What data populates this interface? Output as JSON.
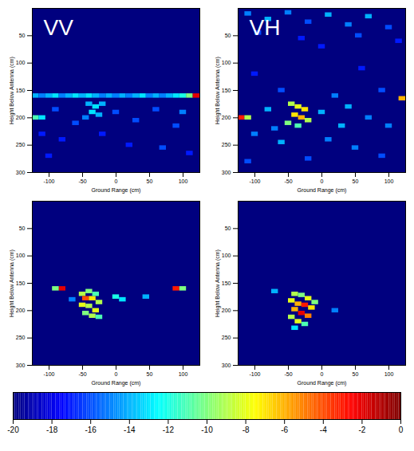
{
  "chart_data": [
    {
      "type": "heatmap",
      "title": "VV",
      "x_label": "Ground Range (cm)",
      "y_label": "Height Below Antenna (cm)",
      "xlim": [
        -125,
        125
      ],
      "ylim": [
        0,
        300
      ],
      "xticks": [
        -100,
        -50,
        0,
        50,
        100
      ],
      "yticks": [
        50,
        100,
        150,
        200,
        250,
        300
      ],
      "cell_size": [
        10,
        8
      ],
      "cells": [
        [
          -120,
          160,
          -14
        ],
        [
          -110,
          160,
          -15
        ],
        [
          -100,
          160,
          -14
        ],
        [
          -90,
          160,
          -13
        ],
        [
          -80,
          160,
          -15
        ],
        [
          -70,
          160,
          -14
        ],
        [
          -60,
          160,
          -13
        ],
        [
          -50,
          160,
          -14
        ],
        [
          -40,
          160,
          -13
        ],
        [
          -30,
          160,
          -14
        ],
        [
          -20,
          160,
          -15
        ],
        [
          -10,
          160,
          -14
        ],
        [
          0,
          160,
          -15
        ],
        [
          10,
          160,
          -14
        ],
        [
          20,
          160,
          -15
        ],
        [
          30,
          160,
          -14
        ],
        [
          40,
          160,
          -13
        ],
        [
          50,
          160,
          -15
        ],
        [
          60,
          160,
          -14
        ],
        [
          70,
          160,
          -15
        ],
        [
          80,
          160,
          -14
        ],
        [
          90,
          160,
          -13
        ],
        [
          100,
          160,
          -12
        ],
        [
          110,
          160,
          -10
        ],
        [
          120,
          160,
          -2
        ],
        [
          -40,
          175,
          -14
        ],
        [
          -30,
          180,
          -13
        ],
        [
          -20,
          175,
          -14
        ],
        [
          -35,
          190,
          -13
        ],
        [
          -25,
          195,
          -14
        ],
        [
          -45,
          200,
          -15
        ],
        [
          -120,
          200,
          -11
        ],
        [
          -110,
          200,
          -13
        ],
        [
          -90,
          185,
          -16
        ],
        [
          -60,
          210,
          -16
        ],
        [
          0,
          190,
          -16
        ],
        [
          30,
          205,
          -16
        ],
        [
          60,
          185,
          -16
        ],
        [
          90,
          215,
          -16
        ],
        [
          -80,
          240,
          -17
        ],
        [
          20,
          250,
          -17
        ],
        [
          70,
          255,
          -16
        ],
        [
          110,
          265,
          -17
        ],
        [
          -100,
          270,
          -17
        ],
        [
          -20,
          230,
          -17
        ],
        [
          100,
          190,
          -15
        ],
        [
          -110,
          230,
          -17
        ]
      ]
    },
    {
      "type": "heatmap",
      "title": "VH",
      "x_label": "Ground Range (cm)",
      "y_label": "Height Below Antenna (cm)",
      "xlim": [
        -125,
        125
      ],
      "ylim": [
        0,
        300
      ],
      "xticks": [
        -100,
        -50,
        0,
        50,
        100
      ],
      "yticks": [
        50,
        100,
        150,
        200,
        250,
        300
      ],
      "cell_size": [
        10,
        8
      ],
      "cells": [
        [
          -110,
          10,
          -15
        ],
        [
          -80,
          20,
          -14
        ],
        [
          -50,
          8,
          -15
        ],
        [
          -20,
          25,
          -16
        ],
        [
          10,
          12,
          -14
        ],
        [
          40,
          30,
          -15
        ],
        [
          70,
          15,
          -14
        ],
        [
          100,
          35,
          -16
        ],
        [
          -95,
          45,
          -16
        ],
        [
          -30,
          55,
          -17
        ],
        [
          55,
          50,
          -16
        ],
        [
          115,
          60,
          -17
        ],
        [
          0,
          70,
          -17
        ],
        [
          -100,
          120,
          -17
        ],
        [
          60,
          110,
          -17
        ],
        [
          -60,
          150,
          -16
        ],
        [
          20,
          160,
          -15
        ],
        [
          90,
          150,
          -16
        ],
        [
          120,
          165,
          -6
        ],
        [
          -120,
          200,
          -3
        ],
        [
          -110,
          200,
          -9
        ],
        [
          -45,
          175,
          -9
        ],
        [
          -35,
          180,
          -8
        ],
        [
          -25,
          185,
          -7
        ],
        [
          -40,
          195,
          -7
        ],
        [
          -30,
          200,
          -6
        ],
        [
          -20,
          205,
          -9
        ],
        [
          -50,
          210,
          -10
        ],
        [
          -35,
          215,
          -11
        ],
        [
          -80,
          185,
          -14
        ],
        [
          0,
          190,
          -14
        ],
        [
          40,
          180,
          -14
        ],
        [
          70,
          200,
          -15
        ],
        [
          100,
          215,
          -15
        ],
        [
          -100,
          230,
          -15
        ],
        [
          -60,
          245,
          -14
        ],
        [
          10,
          240,
          -15
        ],
        [
          50,
          255,
          -15
        ],
        [
          90,
          270,
          -16
        ],
        [
          -20,
          275,
          -16
        ],
        [
          -110,
          280,
          -16
        ],
        [
          30,
          215,
          -14
        ],
        [
          -70,
          220,
          -15
        ]
      ]
    },
    {
      "type": "heatmap",
      "x_label": "Ground Range (cm)",
      "y_label": "Height Below Antenna (cm)",
      "xlim": [
        -125,
        125
      ],
      "ylim": [
        0,
        300
      ],
      "xticks": [
        -100,
        -50,
        0,
        50,
        100
      ],
      "yticks": [
        50,
        100,
        150,
        200,
        250,
        300
      ],
      "cell_size": [
        10,
        8
      ],
      "cells": [
        [
          -80,
          160,
          -2
        ],
        [
          -90,
          160,
          -10
        ],
        [
          90,
          160,
          -3
        ],
        [
          100,
          160,
          -10
        ],
        [
          -50,
          170,
          -9
        ],
        [
          -40,
          165,
          -10
        ],
        [
          -45,
          178,
          -4
        ],
        [
          -35,
          178,
          -7
        ],
        [
          -30,
          170,
          -11
        ],
        [
          -25,
          185,
          -9
        ],
        [
          -50,
          190,
          -8
        ],
        [
          -40,
          192,
          -9
        ],
        [
          -30,
          200,
          -8
        ],
        [
          -45,
          205,
          -10
        ],
        [
          -35,
          210,
          -9
        ],
        [
          -25,
          212,
          -11
        ],
        [
          0,
          175,
          -12
        ],
        [
          10,
          180,
          -13
        ],
        [
          45,
          175,
          -14
        ],
        [
          -65,
          180,
          -15
        ]
      ]
    },
    {
      "type": "heatmap",
      "x_label": "Ground Range (cm)",
      "y_label": "Height Below Antenna (cm)",
      "xlim": [
        -125,
        125
      ],
      "ylim": [
        0,
        300
      ],
      "xticks": [
        -100,
        -50,
        0,
        50,
        100
      ],
      "yticks": [
        50,
        100,
        150,
        200,
        250,
        300
      ],
      "cell_size": [
        10,
        8
      ],
      "cells": [
        [
          -70,
          165,
          -14
        ],
        [
          -40,
          170,
          -9
        ],
        [
          -30,
          172,
          -10
        ],
        [
          -20,
          178,
          -8
        ],
        [
          -45,
          182,
          -8
        ],
        [
          -35,
          188,
          -6
        ],
        [
          -25,
          190,
          -3
        ],
        [
          -15,
          195,
          -7
        ],
        [
          -40,
          198,
          -6
        ],
        [
          -30,
          205,
          -2
        ],
        [
          -20,
          210,
          -5
        ],
        [
          -45,
          212,
          -9
        ],
        [
          -35,
          220,
          -8
        ],
        [
          -25,
          225,
          -11
        ],
        [
          -40,
          232,
          -13
        ],
        [
          -10,
          185,
          -10
        ],
        [
          20,
          200,
          -15
        ]
      ]
    }
  ],
  "color_bar": {
    "range": [
      -20,
      0
    ],
    "ticks": [
      -20,
      -18,
      -16,
      -14,
      -12,
      -10,
      -8,
      -6,
      -4,
      -2,
      0
    ]
  }
}
